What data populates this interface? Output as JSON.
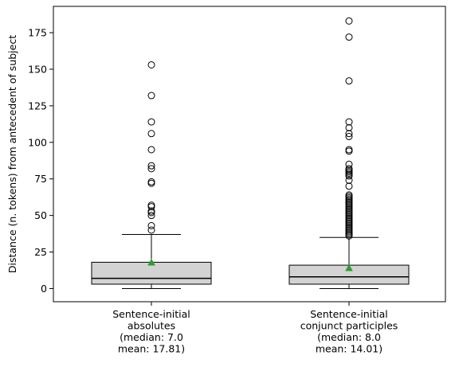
{
  "chart_data": {
    "type": "box",
    "title": "",
    "xlabel": "",
    "ylabel": "Distance (n. tokens) from antecedent of subject",
    "ylim": [
      -9,
      193
    ],
    "yticks": [
      0,
      25,
      50,
      75,
      100,
      125,
      150,
      175
    ],
    "grid": false,
    "categories": [
      {
        "label_lines": [
          "Sentence-initial",
          "absolutes",
          "(median: 7.0",
          "mean: 17.81)"
        ],
        "whisker_low": 0,
        "q1": 3,
        "median": 7,
        "q3": 18,
        "whisker_high": 37,
        "mean": 17.81,
        "outliers": [
          40,
          43,
          50,
          52,
          53,
          56,
          57,
          72,
          73,
          82,
          84,
          95,
          106,
          114,
          132,
          153
        ]
      },
      {
        "label_lines": [
          "Sentence-initial",
          "conjunct participles",
          "(median: 8.0",
          "mean: 14.01)"
        ],
        "whisker_low": 0,
        "q1": 3,
        "median": 8,
        "q3": 16,
        "whisker_high": 35,
        "mean": 14.01,
        "outliers": [
          36,
          37,
          38,
          39,
          40,
          41,
          42,
          43,
          44,
          45,
          46,
          47,
          48,
          49,
          50,
          51,
          52,
          53,
          54,
          55,
          56,
          57,
          58,
          59,
          60,
          61,
          62,
          63,
          64,
          70,
          74,
          77,
          78,
          79,
          80,
          81,
          82,
          85,
          94,
          95,
          104,
          106,
          110,
          114,
          142,
          172,
          183
        ]
      }
    ],
    "colors": {
      "box_fill": "#d3d3d3",
      "edge": "#000000",
      "mean_marker": "#2ca02c"
    }
  }
}
